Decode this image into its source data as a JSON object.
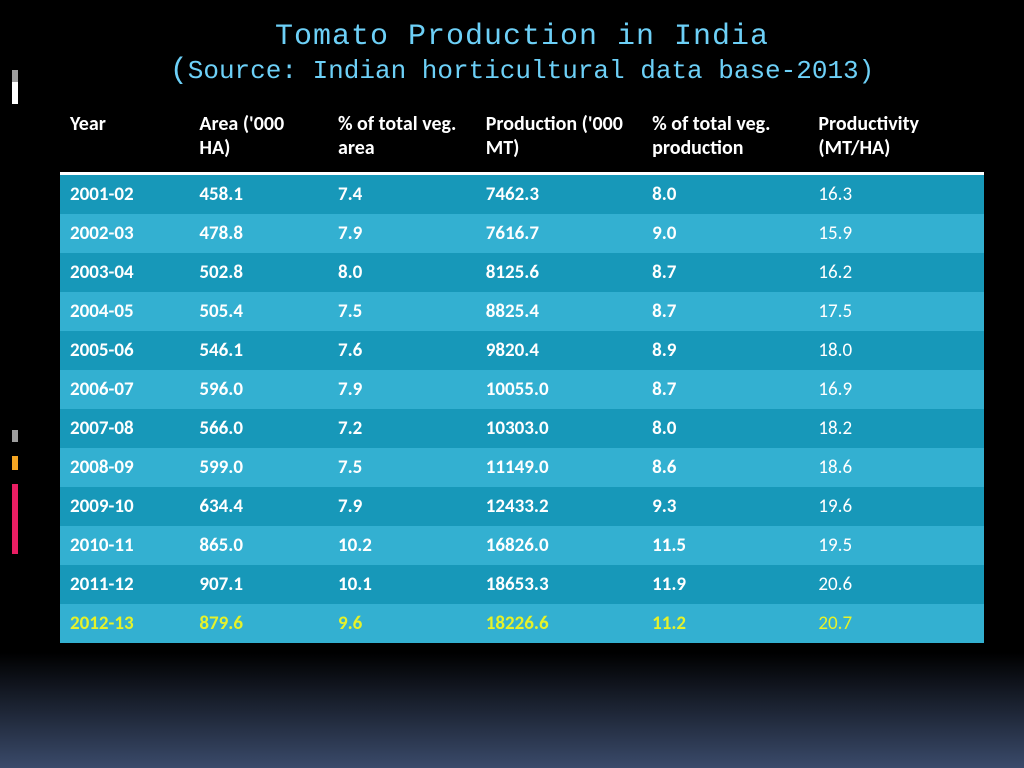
{
  "title": "Tomato Production in India",
  "subtitle": "Source: Indian horticultural data base-2013)",
  "table": {
    "columns": [
      "Year",
      "Area ('000 HA)",
      "% of total veg. area",
      "Production ('000 MT)",
      "% of total veg. production",
      "Productivity (MT/HA)"
    ],
    "column_widths_pct": [
      14,
      15,
      16,
      18,
      18,
      19
    ],
    "rows": [
      [
        "2001-02",
        "458.1",
        "7.4",
        "7462.3",
        "8.0",
        "16.3"
      ],
      [
        "2002-03",
        "478.8",
        "7.9",
        "7616.7",
        "9.0",
        "15.9"
      ],
      [
        "2003-04",
        "502.8",
        " 8.0",
        "8125.6",
        "8.7",
        "16.2"
      ],
      [
        "2004-05",
        "505.4",
        "7.5",
        "8825.4",
        "8.7",
        "17.5"
      ],
      [
        "2005-06",
        "546.1",
        "7.6",
        "9820.4",
        "8.9",
        "18.0"
      ],
      [
        "2006-07",
        "596.0",
        "7.9",
        "10055.0",
        "8.7",
        "16.9"
      ],
      [
        "2007-08",
        "566.0",
        "7.2",
        "10303.0",
        "8.0",
        "18.2"
      ],
      [
        "2008-09",
        "599.0",
        "7.5",
        "11149.0",
        "8.6",
        "18.6"
      ],
      [
        "2009-10",
        "634.4",
        "7.9",
        "12433.2",
        "9.3",
        "19.6"
      ],
      [
        "2010-11",
        "865.0",
        "10.2",
        "16826.0",
        "11.5",
        "19.5"
      ],
      [
        "2011-12",
        "907.1",
        "10.1",
        "18653.3",
        "11.9",
        "20.6"
      ],
      [
        "2012-13",
        "879.6",
        "9.6",
        "18226.6",
        "11.2",
        "20.7"
      ]
    ],
    "highlight_row_index": 11,
    "header_fontsize": 20,
    "cell_fontsize": 19,
    "row_colors": {
      "odd": "#1798b9",
      "even": "#33b0d1"
    },
    "header_bg": "#000000",
    "header_text_color": "#ffffff",
    "cell_text_color": "#ffffff",
    "highlight_text_color": "#e6f22a",
    "header_border_color": "#ffffff"
  },
  "colors": {
    "background": "#000000",
    "gradient_bottom": "#3a4a6a",
    "title_color": "#6dd0f7"
  },
  "decor": {
    "top_bars": [
      {
        "color": "#9e9e9e",
        "height": 12
      },
      {
        "color": "#ffffff",
        "height": 22
      },
      {
        "color": "#000000",
        "height": 10
      }
    ],
    "mid_bars": [
      {
        "color": "#9e9e9e",
        "height": 12
      },
      {
        "color": "#000000",
        "height": 14
      },
      {
        "color": "#f5a623",
        "height": 14
      },
      {
        "color": "#000000",
        "height": 14
      },
      {
        "color": "#e91e63",
        "height": 70
      }
    ]
  }
}
